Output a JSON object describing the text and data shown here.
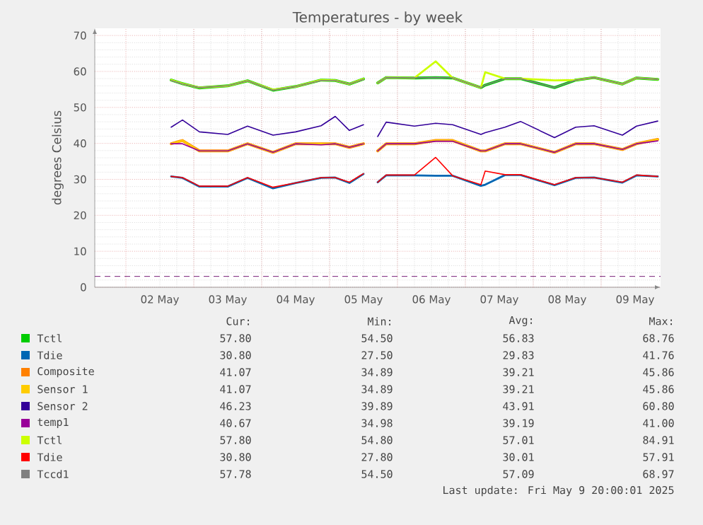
{
  "chart_data": {
    "type": "line",
    "title": "Temperatures - by week",
    "ylabel": "degrees Celsius",
    "x": [
      "2025-05-02T16:00",
      "2025-05-02T20:00",
      "2025-05-03T02:00",
      "2025-05-03T12:00",
      "2025-05-03T19:00",
      "2025-05-04T04:00",
      "2025-05-04T12:00",
      "2025-05-04T21:00",
      "2025-05-05T02:00",
      "2025-05-05T07:00",
      "2025-05-05T12:00",
      "2025-05-05T14:00",
      "2025-05-05T17:00",
      "2025-05-05T20:00",
      "2025-05-06T06:00",
      "2025-05-06T13:30",
      "2025-05-06T19:30",
      "2025-05-07T05:30",
      "2025-05-07T07:00",
      "2025-05-07T14:00",
      "2025-05-07T19:30",
      "2025-05-08T07:30",
      "2025-05-08T15:00",
      "2025-05-08T21:30",
      "2025-05-09T07:30",
      "2025-05-09T12:30",
      "2025-05-09T20:00"
    ],
    "series": [
      {
        "name": "Tctl",
        "color": "#00cc00",
        "values": [
          57.6,
          56.6,
          55.4,
          56.0,
          57.4,
          54.8,
          55.8,
          57.6,
          57.5,
          56.5,
          57.9,
          null,
          56.8,
          58.3,
          58.2,
          58.3,
          58.2,
          55.5,
          56.2,
          58.0,
          58.0,
          55.5,
          57.6,
          58.3,
          56.5,
          58.2,
          57.8
        ]
      },
      {
        "name": "Tdie",
        "color": "#0066b3",
        "values": [
          30.8,
          30.4,
          28.0,
          28.0,
          30.4,
          27.5,
          29.0,
          30.4,
          30.5,
          29.0,
          31.5,
          null,
          29.2,
          31.1,
          31.1,
          31.0,
          31.0,
          28.2,
          28.5,
          31.2,
          31.2,
          28.4,
          30.4,
          30.5,
          29.1,
          31.1,
          30.8
        ]
      },
      {
        "name": "Composite",
        "color": "#ff8000",
        "values": [
          39.9,
          40.8,
          37.9,
          37.9,
          39.9,
          37.5,
          39.9,
          39.9,
          39.9,
          38.9,
          39.9,
          null,
          37.9,
          39.9,
          39.9,
          40.8,
          40.8,
          37.9,
          37.9,
          39.9,
          39.9,
          37.5,
          39.9,
          39.9,
          38.3,
          39.9,
          41.1
        ]
      },
      {
        "name": "Sensor 1",
        "color": "#ffcc00",
        "values": [
          39.9,
          40.8,
          37.9,
          37.9,
          39.9,
          37.5,
          39.9,
          39.9,
          39.9,
          38.9,
          39.9,
          null,
          37.9,
          39.9,
          39.9,
          40.8,
          40.8,
          37.9,
          37.9,
          39.9,
          39.9,
          37.5,
          39.9,
          39.9,
          38.3,
          39.9,
          41.1
        ]
      },
      {
        "name": "Sensor 2",
        "color": "#330099",
        "values": [
          44.5,
          46.5,
          43.2,
          42.5,
          44.8,
          42.3,
          43.2,
          44.9,
          47.5,
          43.6,
          45.2,
          null,
          41.9,
          45.9,
          44.8,
          45.6,
          45.2,
          42.5,
          43.0,
          44.5,
          46.1,
          41.6,
          44.5,
          44.9,
          42.3,
          44.8,
          46.2
        ]
      },
      {
        "name": "temp1",
        "color": "#990099",
        "values": [
          39.9,
          39.9,
          37.9,
          37.9,
          39.9,
          37.5,
          39.9,
          39.6,
          39.9,
          38.9,
          39.9,
          null,
          37.9,
          39.9,
          39.9,
          40.6,
          40.6,
          37.9,
          37.9,
          39.9,
          39.9,
          37.5,
          39.9,
          39.9,
          38.3,
          39.9,
          40.7
        ]
      },
      {
        "name": "Tctl",
        "color": "#ccff00",
        "values": [
          57.6,
          56.6,
          55.5,
          56.0,
          57.4,
          54.9,
          55.8,
          57.6,
          57.5,
          56.5,
          57.9,
          null,
          56.8,
          58.3,
          58.2,
          62.8,
          58.2,
          55.5,
          59.8,
          58.0,
          58.0,
          57.5,
          57.6,
          58.3,
          56.5,
          58.2,
          57.8
        ]
      },
      {
        "name": "Tdie",
        "color": "#ff0000",
        "values": [
          30.8,
          30.5,
          28.1,
          28.1,
          30.5,
          27.8,
          29.0,
          30.5,
          30.5,
          29.2,
          31.6,
          null,
          29.2,
          31.2,
          31.2,
          36.1,
          31.0,
          28.5,
          32.3,
          31.3,
          31.3,
          28.5,
          30.5,
          30.5,
          29.2,
          31.2,
          30.8
        ]
      },
      {
        "name": "Tccd1",
        "color": "#808080",
        "values": [
          57.5,
          56.5,
          55.5,
          56.0,
          57.4,
          54.8,
          55.8,
          57.5,
          57.5,
          56.5,
          57.8,
          null,
          56.8,
          58.3,
          58.2,
          58.3,
          58.2,
          55.5,
          56.2,
          58.0,
          58.0,
          55.5,
          57.6,
          58.3,
          56.5,
          58.2,
          57.8
        ]
      }
    ],
    "xlim": [
      "2025-05-01T13:00",
      "2025-05-09T21:00"
    ],
    "xticks": [
      {
        "value": "2025-05-02T12:00",
        "label": "02 May"
      },
      {
        "value": "2025-05-03T12:00",
        "label": "03 May"
      },
      {
        "value": "2025-05-04T12:00",
        "label": "04 May"
      },
      {
        "value": "2025-05-05T12:00",
        "label": "05 May"
      },
      {
        "value": "2025-05-06T12:00",
        "label": "06 May"
      },
      {
        "value": "2025-05-07T12:00",
        "label": "07 May"
      },
      {
        "value": "2025-05-08T12:00",
        "label": "08 May"
      },
      {
        "value": "2025-05-09T12:00",
        "label": "09 May"
      },
      {
        "value": "2025-05-02T00:00",
        "label": null
      },
      {
        "value": "2025-05-03T00:00",
        "label": null
      },
      {
        "value": "2025-05-04T00:00",
        "label": null
      },
      {
        "value": "2025-05-05T00:00",
        "label": null
      },
      {
        "value": "2025-05-06T00:00",
        "label": null
      },
      {
        "value": "2025-05-07T00:00",
        "label": null
      },
      {
        "value": "2025-05-08T00:00",
        "label": null
      },
      {
        "value": "2025-05-09T00:00",
        "label": null
      }
    ],
    "ylim": [
      0,
      72
    ],
    "yticks": [
      0,
      10,
      20,
      30,
      40,
      50,
      60,
      70
    ],
    "ref_lines": [
      {
        "axis": "y",
        "value": 3,
        "color": "#660066",
        "line_style": "dashed"
      }
    ],
    "grid": true,
    "legend": "bottom",
    "annotations": [
      "Cur:",
      "Min:",
      "Avg:",
      "Max:",
      "57.80",
      "54.50",
      "56.83",
      "68.76",
      "30.80",
      "27.50",
      "29.83",
      "41.76",
      "41.07",
      "34.89",
      "39.21",
      "45.86",
      "41.07",
      "34.89",
      "39.21",
      "45.86",
      "46.23",
      "39.89",
      "43.91",
      "60.80",
      "40.67",
      "34.98",
      "39.19",
      "41.00",
      "57.80",
      "54.80",
      "57.01",
      "84.91",
      "30.80",
      "27.80",
      "30.01",
      "57.91",
      "57.78",
      "54.50",
      "57.09",
      "68.97",
      "Last update: Fri May  9 20:00:01 2025"
    ]
  }
}
